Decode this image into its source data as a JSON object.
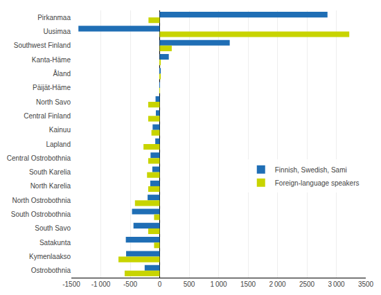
{
  "chart_data": {
    "type": "bar",
    "orientation": "horizontal",
    "categories": [
      "Pirkanmaa",
      "Uusimaa",
      "Southwest Finland",
      "Kanta-Häme",
      "Åland",
      "Päijät-Häme",
      "North Savo",
      "Central Finland",
      "Kainuu",
      "Lapland",
      "Central Ostrobothnia",
      "South Karelia",
      "North Karelia",
      "North Ostrobothnia",
      "South Ostrobothnia",
      "South Savo",
      "Satakunta",
      "Kymenlaakso",
      "Ostrobothnia"
    ],
    "series": [
      {
        "name": "Finnish, Swedish, Sami",
        "color": "#1f6eb5",
        "values": [
          2850,
          -1380,
          1190,
          155,
          8,
          -5,
          -70,
          -65,
          -120,
          -75,
          -155,
          -125,
          -160,
          -205,
          -470,
          -445,
          -575,
          -570,
          -255
        ]
      },
      {
        "name": "Foreign-language speakers",
        "color": "#c8d400",
        "values": [
          -190,
          3220,
          205,
          12,
          8,
          4,
          -195,
          -195,
          -140,
          -275,
          -195,
          -215,
          -195,
          -420,
          -95,
          -195,
          -95,
          -700,
          -595
        ]
      }
    ],
    "xlim": [
      -1500,
      3500
    ],
    "xticks": [
      -1500,
      {
        "value": -1000,
        "label": "-1 000"
      },
      -500,
      0,
      500,
      {
        "value": 1000,
        "label": "1 000"
      },
      1500,
      {
        "value": 2000,
        "label": "2 000"
      },
      2500,
      {
        "value": 3000,
        "label": "3 000"
      },
      3500
    ],
    "grid": true,
    "legend": "right"
  }
}
